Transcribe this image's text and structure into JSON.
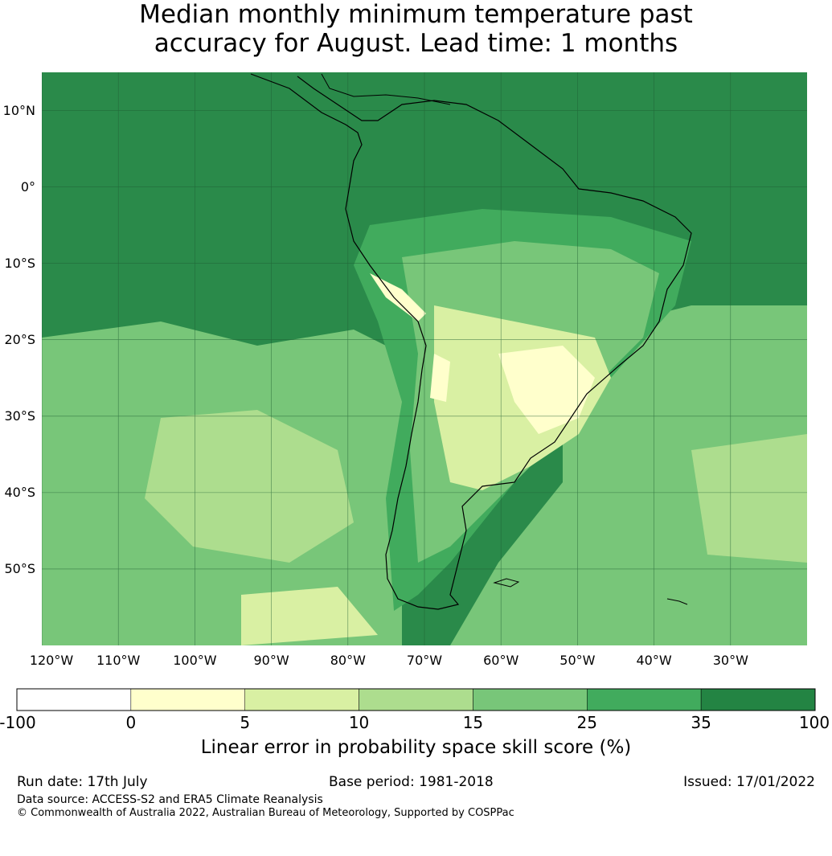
{
  "title": {
    "line1": "Median monthly minimum temperature past",
    "line2": "accuracy for August. Lead time: 1 months"
  },
  "map": {
    "lat_labels": [
      "10°N",
      "0°",
      "10°S",
      "20°S",
      "30°S",
      "40°S",
      "50°S"
    ],
    "lon_labels": [
      "120°W",
      "110°W",
      "100°W",
      "90°W",
      "80°W",
      "70°W",
      "60°W",
      "50°W",
      "40°W",
      "30°W"
    ],
    "extent_lon": [
      -120,
      -20
    ],
    "extent_lat": [
      -60,
      15
    ],
    "ocean_color": "#2a8a4a",
    "coastline_color": "#000000"
  },
  "colorbar": {
    "tick_labels": [
      "-100",
      "0",
      "5",
      "10",
      "15",
      "25",
      "35",
      "100"
    ],
    "colors": [
      "#ffffff",
      "#ffffcc",
      "#d9f0a3",
      "#addd8e",
      "#78c679",
      "#41ab5d",
      "#238443"
    ],
    "label": "Linear error in probability space skill score (%)"
  },
  "footer": {
    "run_date": "Run date: 17th July",
    "base_period": "Base period: 1981-2018",
    "issued": "Issued: 17/01/2022",
    "data_source": "Data source: ACCESS-S2 and ERA5 Climate Reanalysis",
    "copyright": "© Commonwealth of Australia 2022, Australian Bureau of Meteorology, Supported by COSPPac"
  }
}
